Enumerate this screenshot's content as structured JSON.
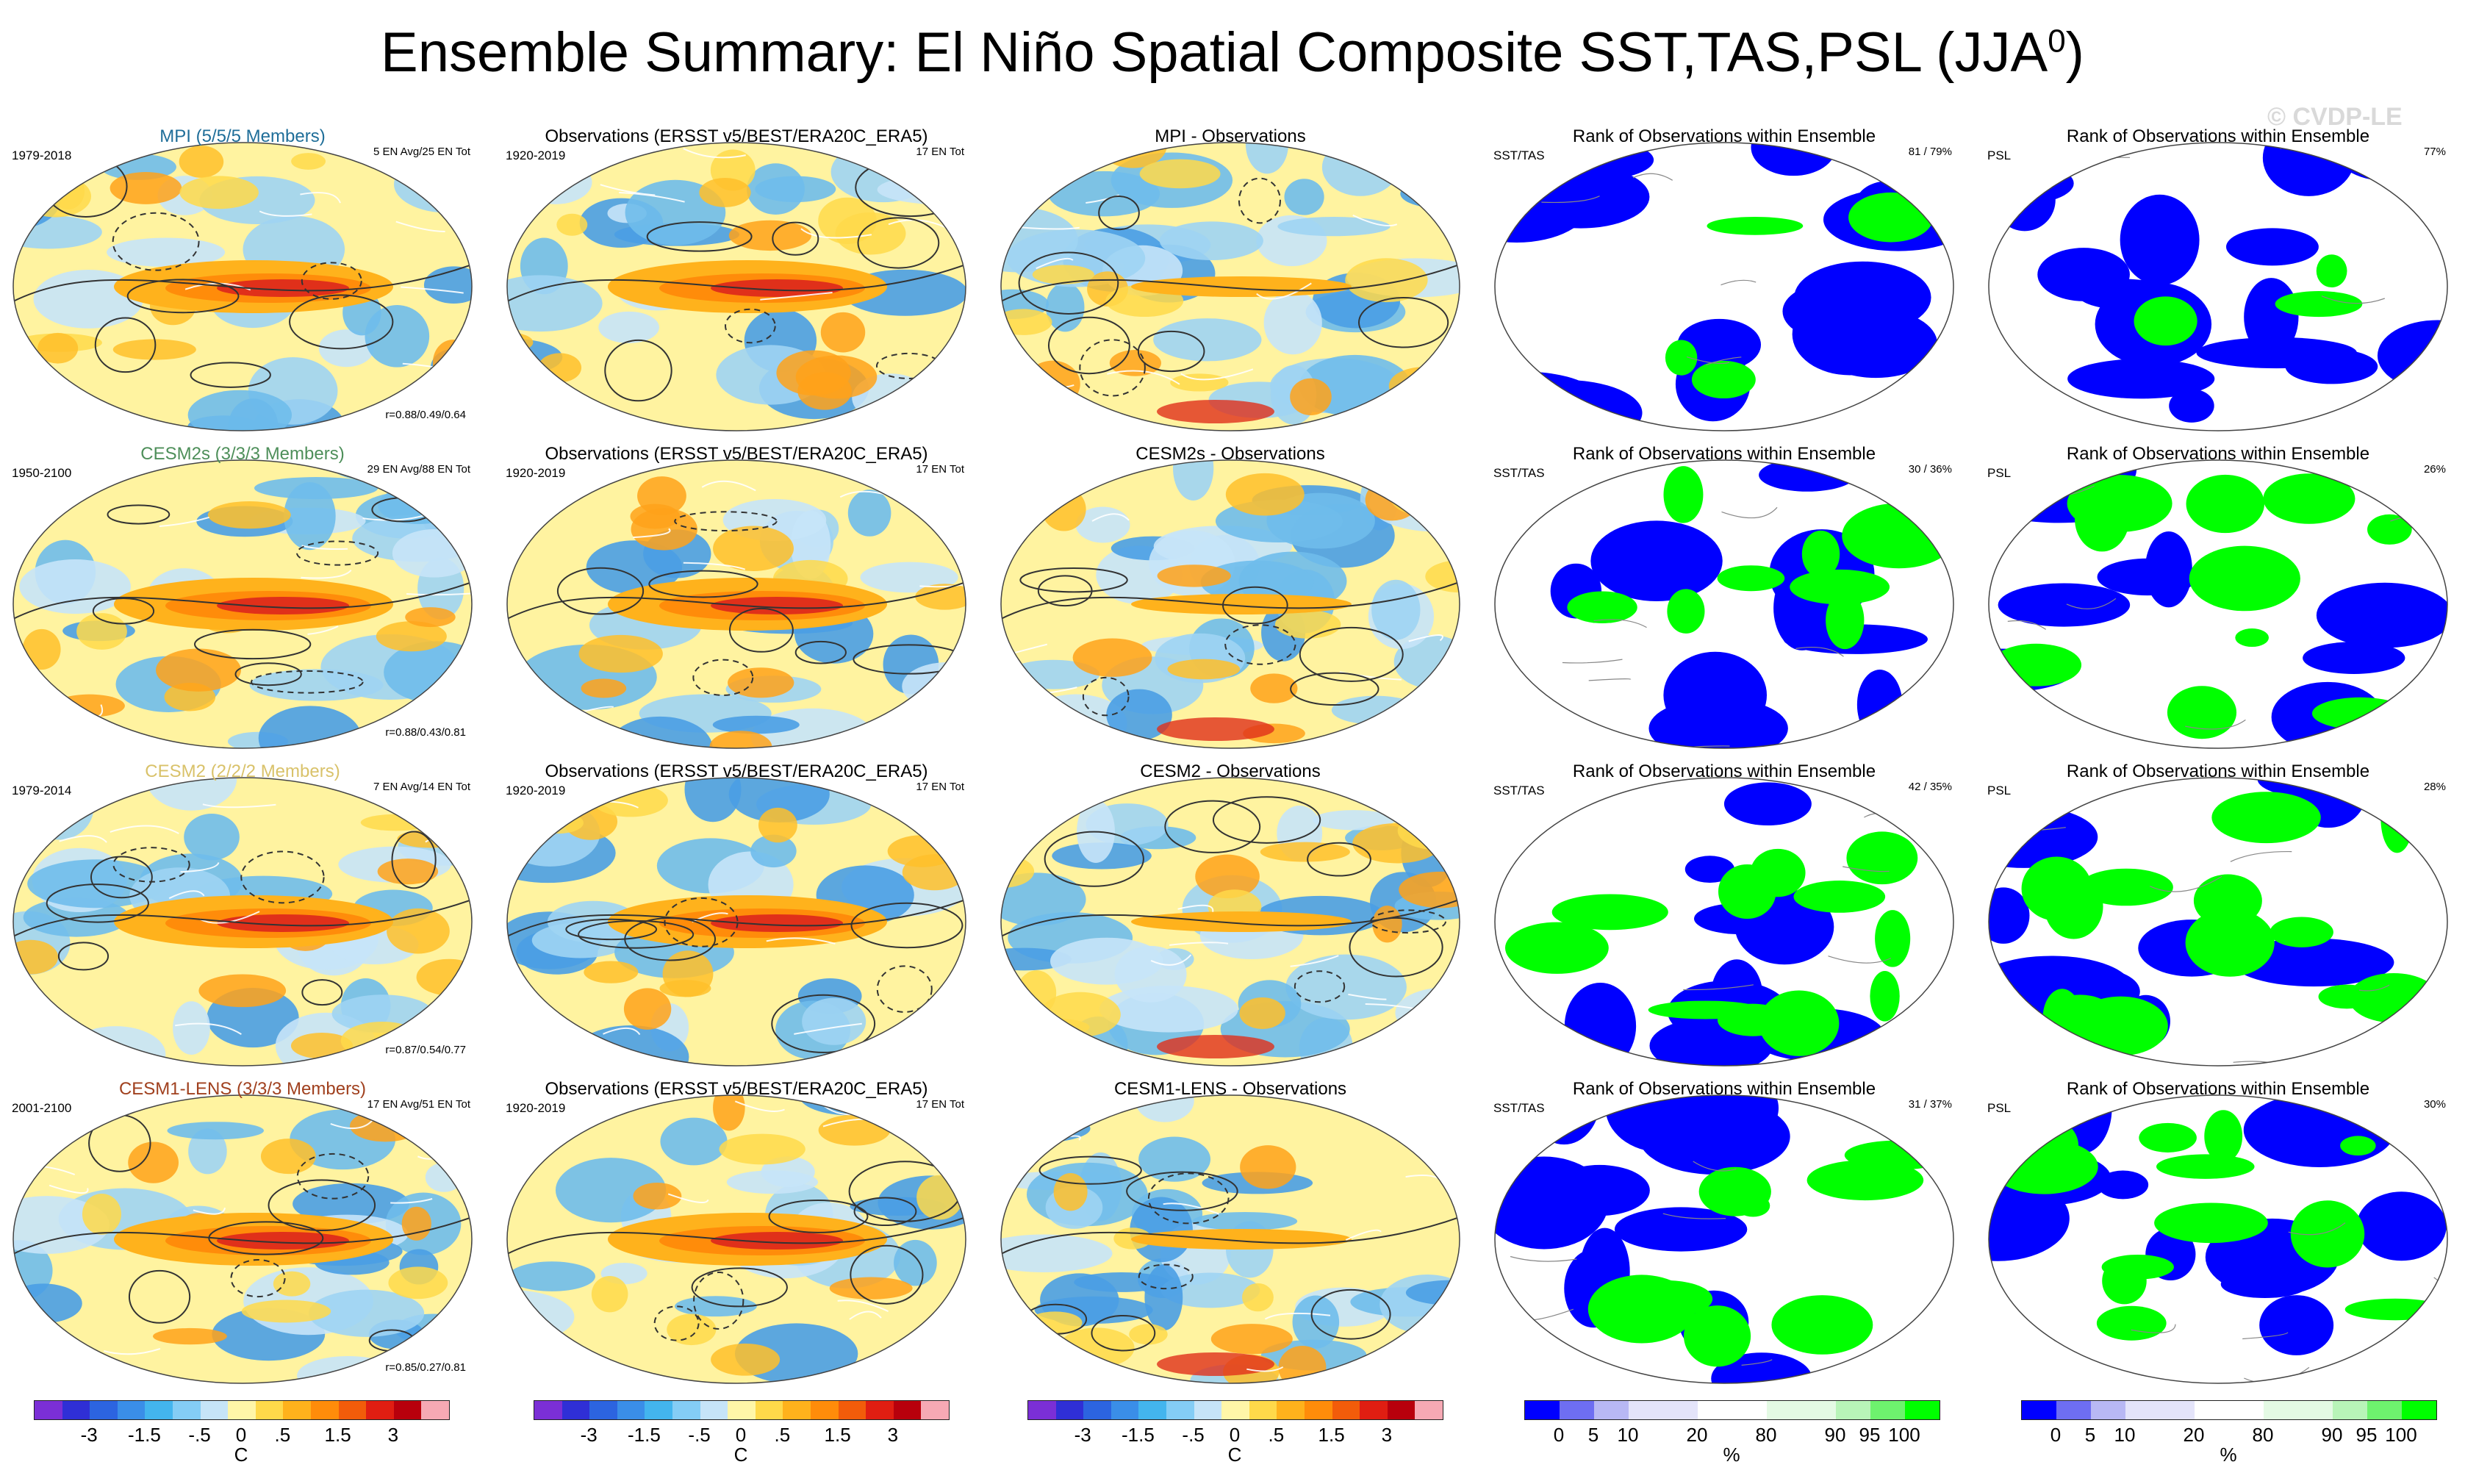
{
  "title": "Ensemble Summary: El Niño Spatial Composite SST,TAS,PSL (JJA",
  "title_superscript": "0",
  "title_close": ")",
  "watermark": "© CVDP-LE",
  "chart_data": {
    "type": "map-panel-grid",
    "rows": [
      {
        "model": "MPI",
        "model_color": "#1f6e99",
        "panels": [
          {
            "kind": "model",
            "title": "MPI (5/5/5 Members)",
            "left": "1979-2018",
            "right": "5 EN Avg/25 EN Tot",
            "bottom": "r=0.88/0.49/0.64"
          },
          {
            "kind": "obs",
            "title": "Observations (ERSST v5/BEST/ERA20C_ERA5)",
            "left": "1920-2019",
            "right": "17 EN Tot",
            "bottom": ""
          },
          {
            "kind": "diff",
            "title": "MPI - Observations",
            "left": "",
            "right": "",
            "bottom": ""
          },
          {
            "kind": "rank",
            "title": "Rank of Observations within Ensemble",
            "left": "SST/TAS",
            "right": "81 /  79%",
            "bottom": "",
            "green_fraction": 0.12
          },
          {
            "kind": "rank",
            "title": "Rank of Observations within Ensemble",
            "left": "PSL",
            "right": "77%",
            "bottom": "",
            "green_fraction": 0.1
          }
        ]
      },
      {
        "model": "CESM2s",
        "model_color": "#4e8f5a",
        "panels": [
          {
            "kind": "model",
            "title": "CESM2s (3/3/3 Members)",
            "left": "1950-2100",
            "right": "29 EN Avg/88 EN Tot",
            "bottom": "r=0.88/0.43/0.81"
          },
          {
            "kind": "obs",
            "title": "Observations (ERSST v5/BEST/ERA20C_ERA5)",
            "left": "1920-2019",
            "right": "17 EN Tot",
            "bottom": ""
          },
          {
            "kind": "diff",
            "title": "CESM2s - Observations",
            "left": "",
            "right": "",
            "bottom": ""
          },
          {
            "kind": "rank",
            "title": "Rank of Observations within Ensemble",
            "left": "SST/TAS",
            "right": "30 /  36%",
            "bottom": "",
            "green_fraction": 0.25
          },
          {
            "kind": "rank",
            "title": "Rank of Observations within Ensemble",
            "left": "PSL",
            "right": "26%",
            "bottom": "",
            "green_fraction": 0.38
          }
        ]
      },
      {
        "model": "CESM2",
        "model_color": "#d9c26a",
        "panels": [
          {
            "kind": "model",
            "title": "CESM2 (2/2/2 Members)",
            "left": "1979-2014",
            "right": "7 EN Avg/14 EN Tot",
            "bottom": "r=0.87/0.54/0.77"
          },
          {
            "kind": "obs",
            "title": "Observations (ERSST v5/BEST/ERA20C_ERA5)",
            "left": "1920-2019",
            "right": "17 EN Tot",
            "bottom": ""
          },
          {
            "kind": "diff",
            "title": "CESM2 - Observations",
            "left": "",
            "right": "",
            "bottom": ""
          },
          {
            "kind": "rank",
            "title": "Rank of Observations within Ensemble",
            "left": "SST/TAS",
            "right": "42 /  35%",
            "bottom": "",
            "green_fraction": 0.38
          },
          {
            "kind": "rank",
            "title": "Rank of Observations within Ensemble",
            "left": "PSL",
            "right": "28%",
            "bottom": "",
            "green_fraction": 0.42
          }
        ]
      },
      {
        "model": "CESM1-LENS",
        "model_color": "#a0401e",
        "panels": [
          {
            "kind": "model",
            "title": "CESM1-LENS (3/3/3 Members)",
            "left": "2001-2100",
            "right": "17 EN Avg/51 EN Tot",
            "bottom": "r=0.85/0.27/0.81"
          },
          {
            "kind": "obs",
            "title": "Observations (ERSST v5/BEST/ERA20C_ERA5)",
            "left": "1920-2019",
            "right": "17 EN Tot",
            "bottom": ""
          },
          {
            "kind": "diff",
            "title": "CESM1-LENS - Observations",
            "left": "",
            "right": "",
            "bottom": ""
          },
          {
            "kind": "rank",
            "title": "Rank of Observations within Ensemble",
            "left": "SST/TAS",
            "right": "31 /  37%",
            "bottom": "",
            "green_fraction": 0.3
          },
          {
            "kind": "rank",
            "title": "Rank of Observations within Ensemble",
            "left": "PSL",
            "right": "30%",
            "bottom": "",
            "green_fraction": 0.4
          }
        ]
      }
    ],
    "colorbars": [
      {
        "kind": "anom",
        "colors": [
          "#7b2fd6",
          "#2f2fd6",
          "#2c64e0",
          "#3a8ee8",
          "#43b5ee",
          "#84cdf5",
          "#c6e4f8",
          "#fff6a8",
          "#ffd94a",
          "#ffb21c",
          "#ff8c0a",
          "#f25c0a",
          "#e01e12",
          "#b8000c",
          "#f6a9b4"
        ],
        "labels": [
          "-3",
          "-1.5",
          "-.5",
          "0",
          ".5",
          "1.5",
          "3"
        ],
        "label_positions": [
          2,
          4,
          6,
          7.5,
          9,
          11,
          13
        ],
        "unit": "C"
      },
      {
        "kind": "anom",
        "colors": [
          "#7b2fd6",
          "#2f2fd6",
          "#2c64e0",
          "#3a8ee8",
          "#43b5ee",
          "#84cdf5",
          "#c6e4f8",
          "#fff6a8",
          "#ffd94a",
          "#ffb21c",
          "#ff8c0a",
          "#f25c0a",
          "#e01e12",
          "#b8000c",
          "#f6a9b4"
        ],
        "labels": [
          "-3",
          "-1.5",
          "-.5",
          "0",
          ".5",
          "1.5",
          "3"
        ],
        "label_positions": [
          2,
          4,
          6,
          7.5,
          9,
          11,
          13
        ],
        "unit": "C"
      },
      {
        "kind": "anom",
        "colors": [
          "#7b2fd6",
          "#2f2fd6",
          "#2c64e0",
          "#3a8ee8",
          "#43b5ee",
          "#84cdf5",
          "#c6e4f8",
          "#fff6a8",
          "#ffd94a",
          "#ffb21c",
          "#ff8c0a",
          "#f25c0a",
          "#e01e12",
          "#b8000c",
          "#f6a9b4"
        ],
        "labels": [
          "-3",
          "-1.5",
          "-.5",
          "0",
          ".5",
          "1.5",
          "3"
        ],
        "label_positions": [
          2,
          4,
          6,
          7.5,
          9,
          11,
          13
        ],
        "unit": "C"
      },
      {
        "kind": "rank",
        "colors": [
          "#0000ff",
          "#6e6ef2",
          "#b8b8f4",
          "#e4e4fa",
          "#e4e4fa",
          "#ffffff",
          "#ffffff",
          "#e4fae4",
          "#e4fae4",
          "#b8f4b8",
          "#6ef26e",
          "#00ff00"
        ],
        "labels": [
          "0",
          "5",
          "10",
          "20",
          "80",
          "90",
          "95",
          "100"
        ],
        "label_positions": [
          1,
          2,
          3,
          5,
          7,
          9,
          10,
          11
        ],
        "unit": "%"
      },
      {
        "kind": "rank",
        "colors": [
          "#0000ff",
          "#6e6ef2",
          "#b8b8f4",
          "#e4e4fa",
          "#e4e4fa",
          "#ffffff",
          "#ffffff",
          "#e4fae4",
          "#e4fae4",
          "#b8f4b8",
          "#6ef26e",
          "#00ff00"
        ],
        "labels": [
          "0",
          "5",
          "10",
          "20",
          "80",
          "90",
          "95",
          "100"
        ],
        "label_positions": [
          1,
          2,
          3,
          5,
          7,
          9,
          10,
          11
        ],
        "unit": "%"
      }
    ]
  }
}
